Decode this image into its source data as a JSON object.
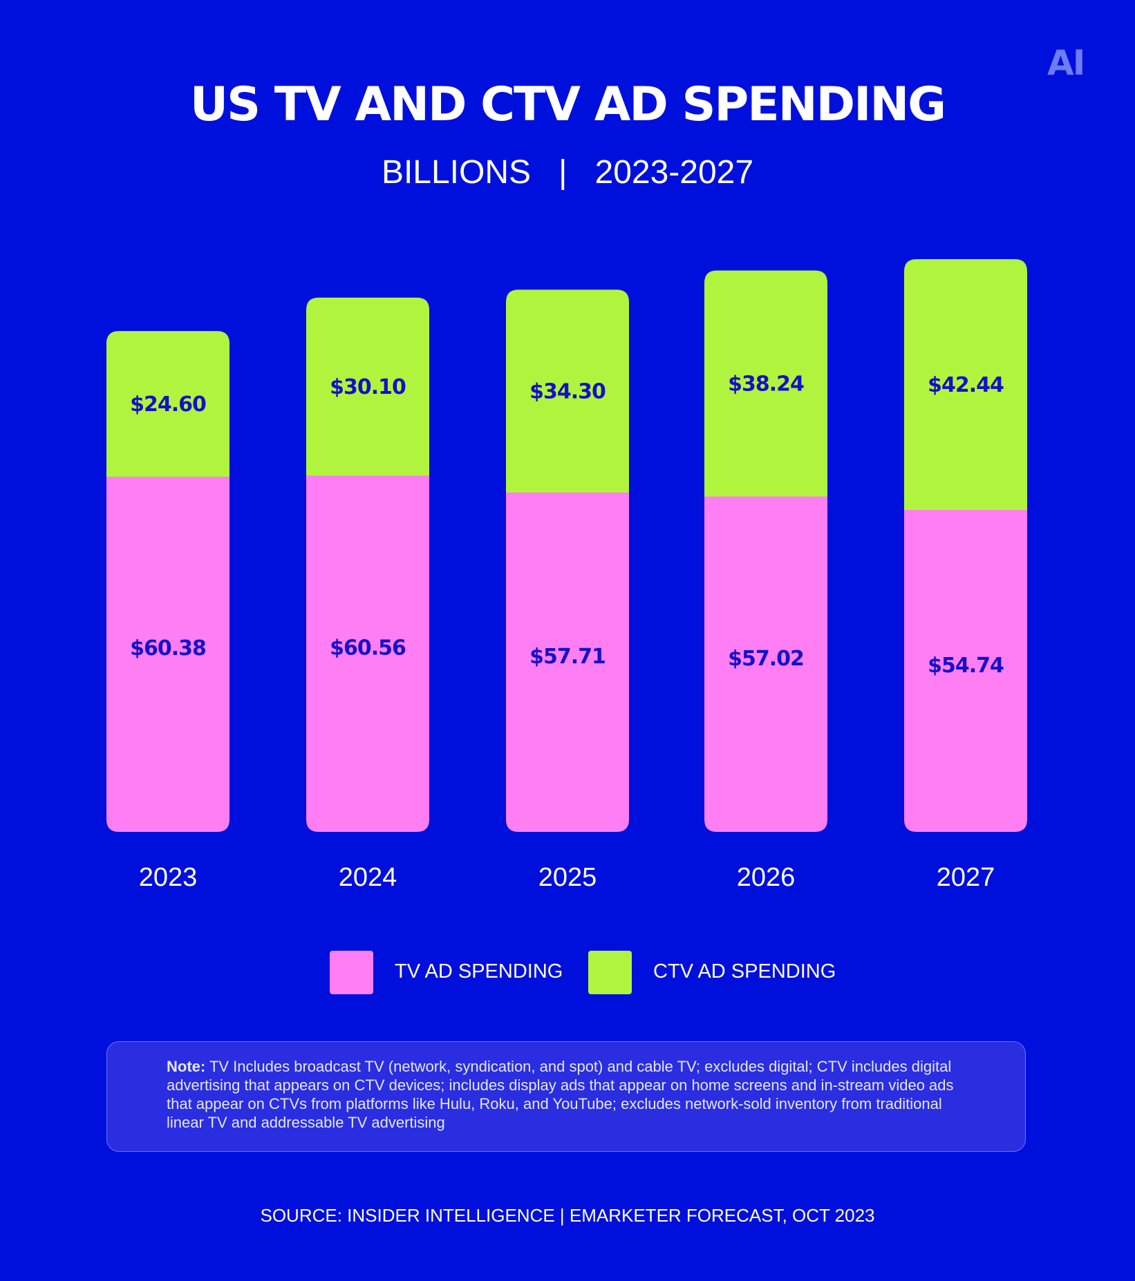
{
  "logo": "AI",
  "title": "US TV AND CTV AD SPENDING",
  "subtitle": "BILLIONS   |   2023-2027",
  "colors": {
    "background": "#0010DC",
    "tv": "#FF7EF3",
    "ctv": "#B1F43D",
    "value_label": "#1510C8"
  },
  "chart_data": {
    "type": "bar",
    "stacked": true,
    "categories": [
      "2023",
      "2024",
      "2025",
      "2026",
      "2027"
    ],
    "series": [
      {
        "name": "TV AD SPENDING",
        "values": [
          60.38,
          60.56,
          57.71,
          57.02,
          54.74
        ],
        "labels": [
          "$60.38",
          "$60.56",
          "$57.71",
          "$57.02",
          "$54.74"
        ]
      },
      {
        "name": "CTV AD SPENDING",
        "values": [
          24.6,
          30.1,
          34.3,
          38.24,
          42.44
        ],
        "labels": [
          "$24.60",
          "$30.10",
          "$34.30",
          "$38.24",
          "$42.44"
        ]
      }
    ],
    "legend_position": "bottom",
    "grid": false
  },
  "legend": [
    {
      "label": "TV AD SPENDING"
    },
    {
      "label": "CTV AD SPENDING"
    }
  ],
  "note": {
    "label": "Note:",
    "text": "TV Includes broadcast TV (network, syndication, and spot) and cable TV; excludes digital; CTV includes digital advertising that appears on CTV devices; includes display ads that appear on home screens and in-stream video ads that appear on CTVs from platforms like Hulu, Roku, and YouTube; excludes network-sold inventory from traditional linear TV and addressable TV advertising"
  },
  "source": "SOURCE: INSIDER INTELLIGENCE | EMARKETER FORECAST, OCT 2023"
}
